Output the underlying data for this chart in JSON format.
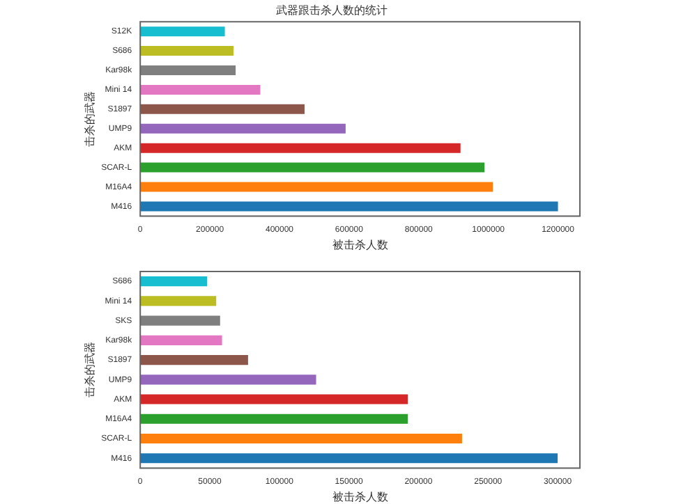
{
  "chart_data": [
    {
      "type": "bar",
      "orientation": "horizontal",
      "title": "武器跟击杀人数的统计",
      "xlabel": "被击杀人数",
      "ylabel": "击杀的武器",
      "categories": [
        "S12K",
        "S686",
        "Kar98k",
        "Mini 14",
        "S1897",
        "UMP9",
        "AKM",
        "SCAR-L",
        "M16A4",
        "M416"
      ],
      "values": [
        243000,
        268000,
        274000,
        345000,
        472000,
        590000,
        920000,
        989000,
        1013000,
        1200000
      ],
      "colors": [
        "#17becf",
        "#bcbd22",
        "#7f7f7f",
        "#e377c2",
        "#8c564b",
        "#9467bd",
        "#d62728",
        "#2ca02c",
        "#ff7f0e",
        "#1f77b4"
      ],
      "xlim": [
        0,
        1263000
      ],
      "xticks": [
        0,
        200000,
        400000,
        600000,
        800000,
        1000000,
        1200000
      ],
      "grid": false,
      "legend": false
    },
    {
      "type": "bar",
      "orientation": "horizontal",
      "xlabel": "被击杀人数",
      "ylabel": "击杀的武器",
      "categories": [
        "S686",
        "Mini 14",
        "SKS",
        "Kar98k",
        "S1897",
        "UMP9",
        "AKM",
        "M16A4",
        "SCAR-L",
        "M416"
      ],
      "values": [
        48000,
        54600,
        57400,
        58800,
        77500,
        126400,
        192300,
        192300,
        231300,
        300000
      ],
      "colors": [
        "#17becf",
        "#bcbd22",
        "#7f7f7f",
        "#e377c2",
        "#8c564b",
        "#9467bd",
        "#d62728",
        "#2ca02c",
        "#ff7f0e",
        "#1f77b4"
      ],
      "xlim": [
        0,
        316000
      ],
      "xticks": [
        0,
        50000,
        100000,
        150000,
        200000,
        250000,
        300000
      ],
      "grid": false,
      "legend": false
    }
  ]
}
